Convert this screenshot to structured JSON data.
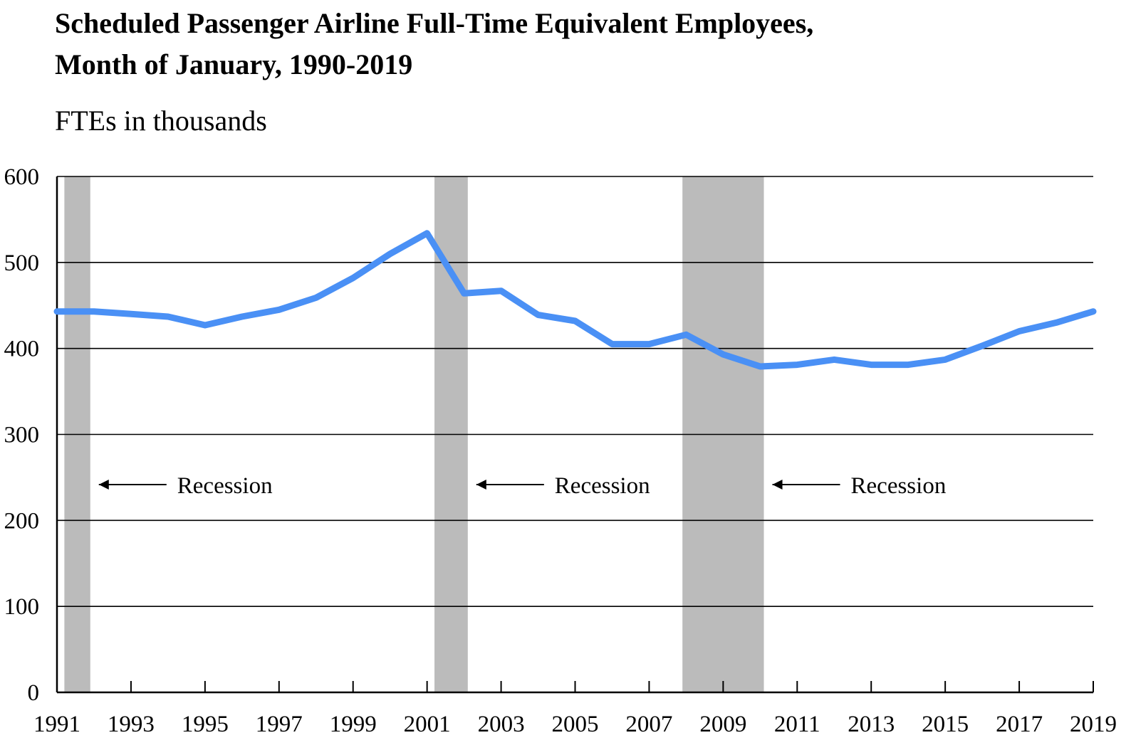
{
  "chart_data": {
    "type": "line",
    "title_line1": "Scheduled Passenger Airline Full-Time Equivalent Employees,",
    "title_line2": "Month of January, 1990-2019",
    "ylabel": "FTEs in thousands",
    "xlabel": "",
    "ylim": [
      0,
      600
    ],
    "yticks": [
      0,
      100,
      200,
      300,
      400,
      500,
      600
    ],
    "xlim": [
      1991,
      2019
    ],
    "xticks": [
      1991,
      1993,
      1995,
      1997,
      1999,
      2001,
      2003,
      2005,
      2007,
      2009,
      2011,
      2013,
      2015,
      2017,
      2019
    ],
    "grid": true,
    "line_color": "#4a90f5",
    "band_color": "#bbbbbb",
    "x": [
      1991,
      1992,
      1993,
      1994,
      1995,
      1996,
      1997,
      1998,
      1999,
      2000,
      2001,
      2002,
      2003,
      2004,
      2005,
      2006,
      2007,
      2008,
      2009,
      2010,
      2011,
      2012,
      2013,
      2014,
      2015,
      2016,
      2017,
      2018,
      2019
    ],
    "values": [
      443,
      443,
      440,
      437,
      427,
      437,
      445,
      459,
      482,
      510,
      534,
      464,
      467,
      439,
      432,
      405,
      405,
      416,
      393,
      379,
      381,
      387,
      381,
      381,
      387,
      403,
      420,
      430,
      443
    ],
    "recessions": [
      {
        "start": 1991.2,
        "end": 1991.9,
        "label": "Recession"
      },
      {
        "start": 2001.2,
        "end": 2002.1,
        "label": "Recession"
      },
      {
        "start": 2007.9,
        "end": 2010.1,
        "label": "Recession"
      }
    ]
  }
}
